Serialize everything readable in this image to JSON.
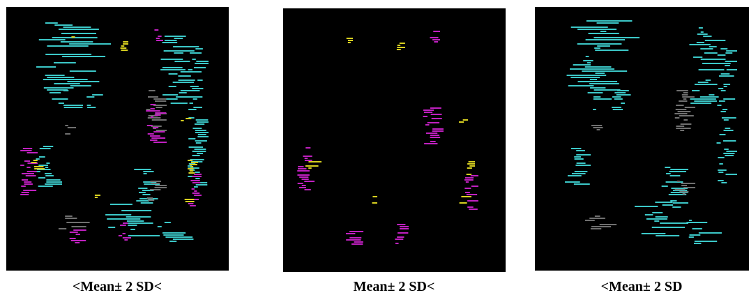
{
  "panels": [
    {
      "caption": "<Mean± 2 SD<"
    },
    {
      "caption": "Mean± 2 SD<"
    },
    {
      "caption": "<Mean± 2 SD"
    }
  ]
}
